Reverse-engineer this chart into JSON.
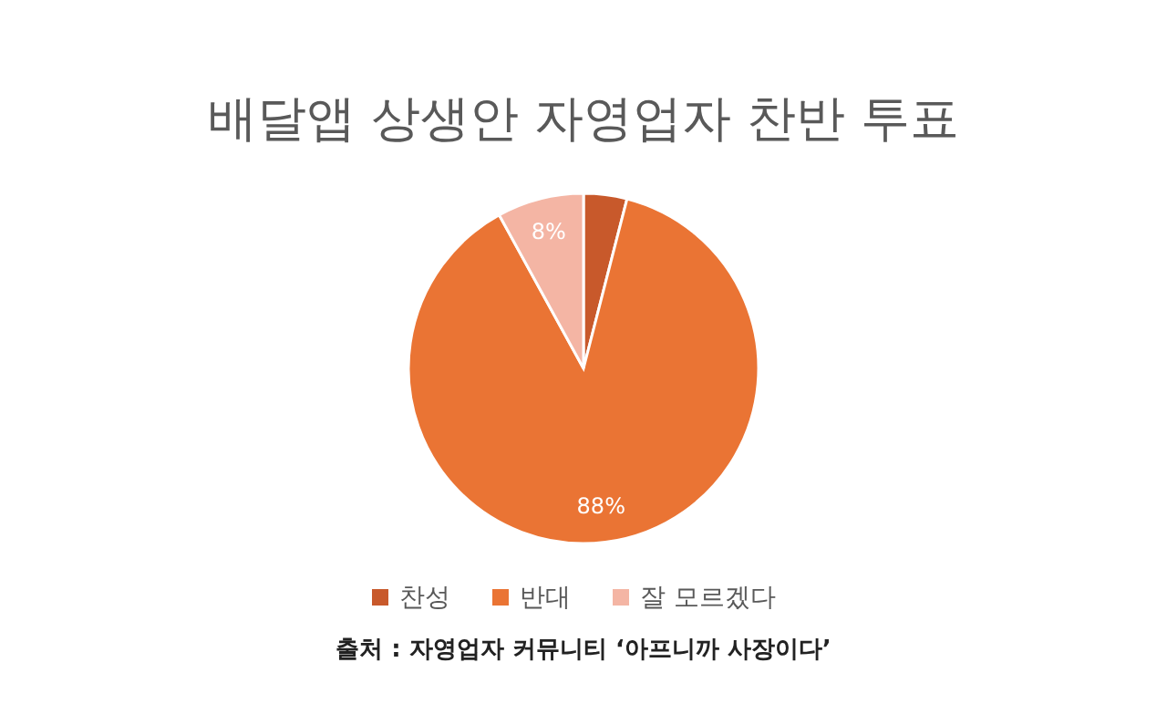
{
  "chart_data": {
    "type": "pie",
    "title": "배달앱 상생안 자영업자 찬반 투표",
    "categories": [
      "찬성",
      "반대",
      "잘 모르겠다"
    ],
    "values": [
      4,
      88,
      8
    ],
    "colors": [
      "#c8592b",
      "#ea7434",
      "#f4b5a4"
    ],
    "value_labels": [
      null,
      "88%",
      "8%"
    ],
    "legend": "bottom",
    "annotations": [
      "출처 : 자영업자 커뮤니티 ‘아프니까 사장이다’"
    ]
  }
}
